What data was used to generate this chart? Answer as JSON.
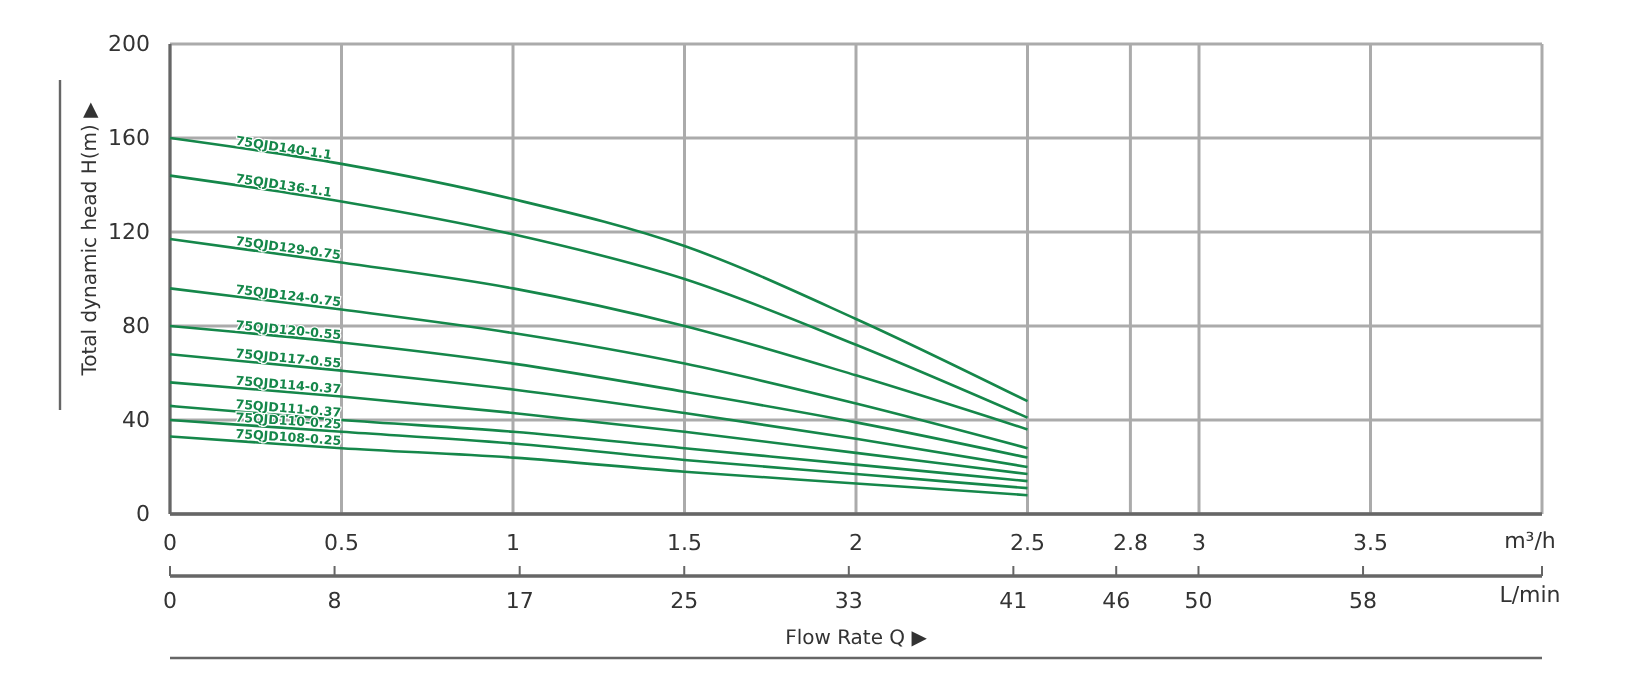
{
  "chart_data": {
    "type": "line",
    "ylabel": "Total dynamic head H(m) ▶",
    "xlabel": "m³/h",
    "x2label": "L/min",
    "annotations": [
      "Flow Rate Q ▶"
    ],
    "x": [
      0,
      0.5,
      1,
      1.5,
      2,
      2.5
    ],
    "xlim": [
      0,
      4
    ],
    "xticks": [
      0,
      0.5,
      1,
      1.5,
      2,
      2.5,
      2.8,
      3,
      3.5
    ],
    "x2lim": [
      0,
      66.7
    ],
    "x2ticks": [
      0,
      8,
      17,
      25,
      33,
      41,
      46,
      50,
      58
    ],
    "ylim": [
      0,
      200
    ],
    "yticks": [
      0,
      40,
      80,
      120,
      160,
      200
    ],
    "grid": true,
    "legend": false,
    "marker": "none",
    "line_style": "solid",
    "series": [
      {
        "name": "75QJD140-1.1",
        "color": "#15874a",
        "values": [
          160,
          149,
          134,
          114,
          83,
          48
        ]
      },
      {
        "name": "75QJD136-1.1",
        "color": "#15874a",
        "values": [
          144,
          133,
          119,
          100,
          72,
          41
        ]
      },
      {
        "name": "75QJD129-0.75",
        "color": "#15874a",
        "values": [
          117,
          107,
          96,
          80,
          59,
          36
        ]
      },
      {
        "name": "75QJD124-0.75",
        "color": "#15874a",
        "values": [
          96,
          87,
          77,
          64,
          47,
          28
        ]
      },
      {
        "name": "75QJD120-0.55",
        "color": "#15874a",
        "values": [
          80,
          73,
          64,
          52,
          39,
          24
        ]
      },
      {
        "name": "75QJD117-0.55",
        "color": "#15874a",
        "values": [
          68,
          61,
          53,
          43,
          32,
          20
        ]
      },
      {
        "name": "75QJD114-0.37",
        "color": "#15874a",
        "values": [
          56,
          50,
          43,
          35,
          26,
          17
        ]
      },
      {
        "name": "75QJD111-0.37",
        "color": "#15874a",
        "values": [
          46,
          40,
          35,
          28,
          21,
          14
        ]
      },
      {
        "name": "75QJD110-0.25",
        "color": "#15874a",
        "values": [
          40,
          35,
          30,
          23,
          17,
          11
        ]
      },
      {
        "name": "75QJD108-0.25",
        "color": "#15874a",
        "values": [
          33,
          28,
          24,
          18,
          13,
          8
        ]
      }
    ]
  }
}
